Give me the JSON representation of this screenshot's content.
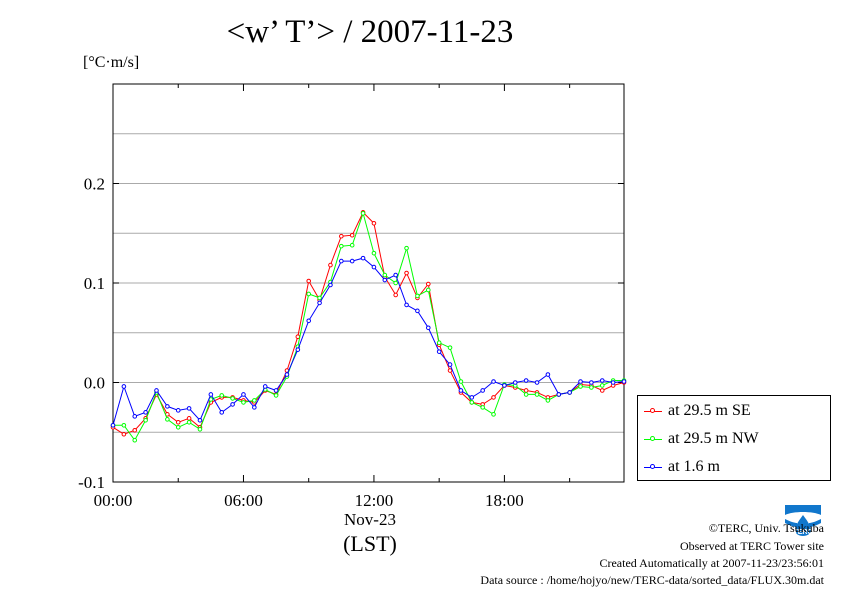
{
  "chart_data": {
    "type": "line",
    "title": "<w’ T’> / 2007-11-23",
    "ylabel": "[°C·m/s]",
    "xlabel": "(LST)",
    "date_label": "Nov-23",
    "xlim": [
      0,
      23.5
    ],
    "ylim": [
      -0.1,
      0.3
    ],
    "x_ticks": [
      0,
      6,
      12,
      18
    ],
    "x_tick_labels": [
      "00:00",
      "06:00",
      "12:00",
      "18:00"
    ],
    "y_ticks": [
      -0.1,
      0.0,
      0.1,
      0.2
    ],
    "y_tick_labels": [
      "-0.1",
      "0.0",
      "0.1",
      "0.2"
    ],
    "grid": "horizontal",
    "legend_position": "right-bottom",
    "x": [
      0.0,
      0.5,
      1.0,
      1.5,
      2.0,
      2.5,
      3.0,
      3.5,
      4.0,
      4.5,
      5.0,
      5.5,
      6.0,
      6.5,
      7.0,
      7.5,
      8.0,
      8.5,
      9.0,
      9.5,
      10.0,
      10.5,
      11.0,
      11.5,
      12.0,
      12.5,
      13.0,
      13.5,
      14.0,
      14.5,
      15.0,
      15.5,
      16.0,
      16.5,
      17.0,
      17.5,
      18.0,
      18.5,
      19.0,
      19.5,
      20.0,
      20.5,
      21.0,
      21.5,
      22.0,
      22.5,
      23.0,
      23.5
    ],
    "series": [
      {
        "name": "at 29.5 m SE",
        "color": "#ff0000",
        "values": [
          -0.045,
          -0.052,
          -0.048,
          -0.036,
          -0.012,
          -0.032,
          -0.04,
          -0.036,
          -0.045,
          -0.02,
          -0.015,
          -0.015,
          -0.018,
          -0.02,
          -0.008,
          -0.012,
          0.012,
          0.046,
          0.102,
          0.083,
          0.118,
          0.147,
          0.148,
          0.171,
          0.16,
          0.106,
          0.088,
          0.11,
          0.085,
          0.099,
          0.038,
          0.012,
          -0.01,
          -0.02,
          -0.022,
          -0.015,
          -0.003,
          -0.005,
          -0.008,
          -0.01,
          -0.015,
          -0.012,
          -0.01,
          -0.002,
          -0.003,
          -0.008,
          -0.003,
          0.0
        ]
      },
      {
        "name": "at 29.5 m NW",
        "color": "#00ff00",
        "values": [
          -0.043,
          -0.043,
          -0.058,
          -0.038,
          -0.01,
          -0.037,
          -0.045,
          -0.04,
          -0.047,
          -0.017,
          -0.013,
          -0.016,
          -0.02,
          -0.018,
          -0.007,
          -0.013,
          0.006,
          0.036,
          0.089,
          0.085,
          0.101,
          0.137,
          0.138,
          0.17,
          0.13,
          0.108,
          0.1,
          0.135,
          0.087,
          0.093,
          0.04,
          0.035,
          0.001,
          -0.02,
          -0.025,
          -0.032,
          -0.002,
          -0.003,
          -0.012,
          -0.012,
          -0.018,
          -0.012,
          -0.01,
          -0.004,
          -0.005,
          -0.003,
          0.002,
          0.002
        ]
      },
      {
        "name": "at 1.6 m",
        "color": "#0000ff",
        "values": [
          -0.043,
          -0.004,
          -0.034,
          -0.03,
          -0.008,
          -0.024,
          -0.028,
          -0.026,
          -0.038,
          -0.012,
          -0.03,
          -0.022,
          -0.012,
          -0.025,
          -0.004,
          -0.008,
          0.008,
          0.033,
          0.062,
          0.08,
          0.098,
          0.122,
          0.122,
          0.125,
          0.116,
          0.103,
          0.108,
          0.078,
          0.072,
          0.055,
          0.031,
          0.018,
          -0.008,
          -0.015,
          -0.008,
          0.001,
          -0.003,
          0.0,
          0.002,
          0.0,
          0.008,
          -0.012,
          -0.01,
          0.001,
          0.0,
          0.002,
          0.0,
          0.001
        ]
      }
    ]
  },
  "footer": {
    "copyright": "©TERC, Univ. Tsukuba",
    "observed": "Observed at TERC Tower site",
    "created": "Created Automatically at 2007-11-23/23:56:01",
    "source": "Data source : /home/hojyo/new/TERC-data/sorted_data/FLUX.30m.dat"
  },
  "logo_text": "TERC",
  "logo_color": "#1177cc"
}
